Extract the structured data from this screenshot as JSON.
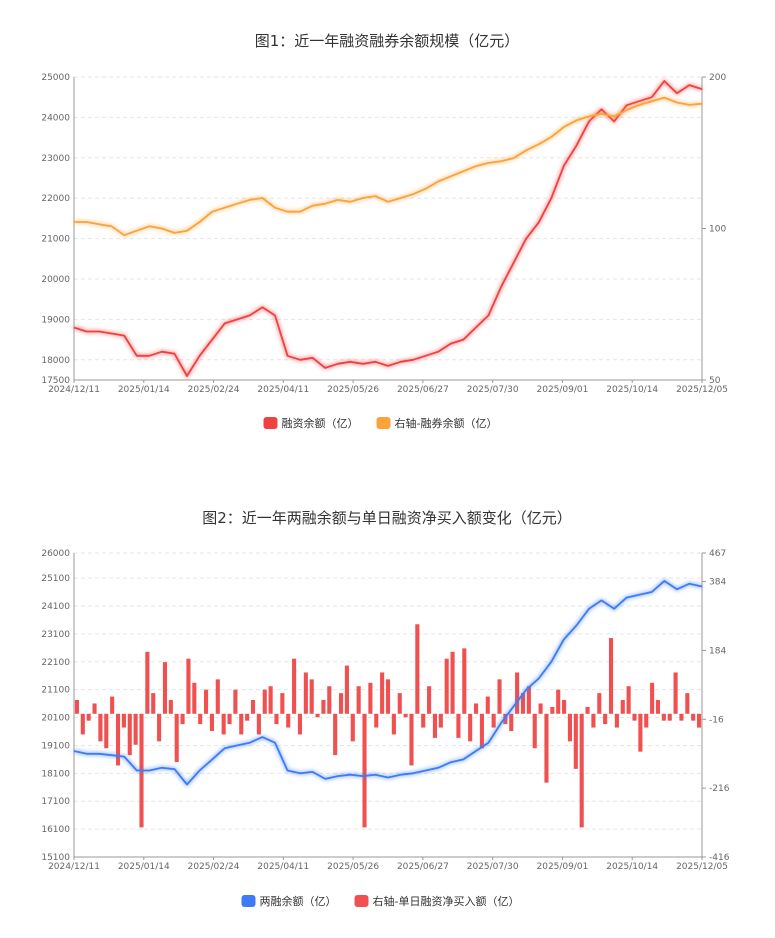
{
  "chart_data": [
    {
      "type": "line",
      "title": "图1：近一年融资融券余额规模（亿元）",
      "x_ticks": [
        "2024/12/11",
        "2025/01/14",
        "2025/02/24",
        "2025/04/11",
        "2025/05/26",
        "2025/06/27",
        "2025/07/30",
        "2025/09/01",
        "2025/10/14",
        "2025/12/05"
      ],
      "y_left": {
        "min": 17500,
        "max": 25000,
        "ticks": [
          17500,
          18000,
          19000,
          20000,
          21000,
          22000,
          23000,
          24000,
          25000
        ]
      },
      "y_right": {
        "min": 50,
        "max": 200,
        "ticks": [
          50,
          100,
          200
        ]
      },
      "series": [
        {
          "name": "融资余额（亿）",
          "axis": "left",
          "color": "#f04040",
          "values": [
            18800,
            18700,
            18700,
            18650,
            18600,
            18100,
            18100,
            18200,
            18150,
            17600,
            18100,
            18500,
            18900,
            19000,
            19100,
            19300,
            19100,
            18100,
            18000,
            18050,
            17800,
            17900,
            17950,
            17900,
            17950,
            17850,
            17950,
            18000,
            18100,
            18200,
            18400,
            18500,
            18800,
            19100,
            19800,
            20400,
            21000,
            21400,
            22000,
            22800,
            23300,
            23900,
            24200,
            23900,
            24300,
            24400,
            24500,
            24900,
            24600,
            24800,
            24700
          ]
        },
        {
          "name": "右轴-融券余额（亿）",
          "axis": "right",
          "color": "#f9a33a",
          "values": [
            103,
            103,
            102,
            101,
            97,
            99,
            101,
            100,
            98,
            99,
            103,
            108,
            110,
            112,
            114,
            115,
            110,
            108,
            108,
            111,
            112,
            114,
            113,
            115,
            116,
            113,
            115,
            117,
            120,
            124,
            127,
            130,
            133,
            135,
            136,
            138,
            143,
            147,
            152,
            159,
            164,
            167,
            169,
            167,
            172,
            176,
            179,
            182,
            178,
            176,
            177
          ]
        }
      ]
    },
    {
      "type": "bar+line",
      "title": "图2：近一年两融余额与单日融资净买入额变化（亿元）",
      "x_ticks": [
        "2024/12/11",
        "2025/01/14",
        "2025/02/24",
        "2025/04/11",
        "2025/05/26",
        "2025/06/27",
        "2025/07/30",
        "2025/09/01",
        "2025/10/14",
        "2025/12/05"
      ],
      "y_left": {
        "min": 15100,
        "max": 26000,
        "ticks": [
          15100,
          16100,
          17100,
          18100,
          19100,
          20100,
          21100,
          22100,
          23100,
          24100,
          25100,
          26000
        ]
      },
      "y_right": {
        "min": -416,
        "max": 467,
        "ticks": [
          -416,
          -216,
          -16,
          184,
          384,
          467
        ]
      },
      "series": [
        {
          "name": "两融余额（亿）",
          "axis": "left",
          "color": "#3d7bf5",
          "values": [
            18900,
            18800,
            18800,
            18750,
            18700,
            18200,
            18200,
            18300,
            18250,
            17700,
            18200,
            18600,
            19000,
            19100,
            19200,
            19400,
            19200,
            18200,
            18100,
            18150,
            17900,
            18000,
            18050,
            18000,
            18050,
            17950,
            18050,
            18100,
            18200,
            18300,
            18500,
            18600,
            18900,
            19200,
            19900,
            20500,
            21100,
            21500,
            22100,
            22900,
            23400,
            24000,
            24300,
            24000,
            24400,
            24500,
            24600,
            25000,
            24700,
            24900,
            24800
          ]
        },
        {
          "name": "右轴-单日融资净买入额（亿）",
          "axis": "right",
          "color": "#f05050",
          "values": [
            40,
            -60,
            -20,
            30,
            -80,
            -100,
            50,
            -150,
            -40,
            -120,
            -90,
            -330,
            180,
            60,
            -80,
            150,
            40,
            -140,
            -30,
            160,
            90,
            -30,
            70,
            -50,
            100,
            -60,
            -30,
            70,
            -60,
            -20,
            40,
            -60,
            70,
            80,
            -30,
            60,
            -40,
            160,
            -60,
            120,
            100,
            -10,
            40,
            80,
            -120,
            60,
            140,
            -80,
            80,
            -330,
            90,
            -40,
            120,
            100,
            -60,
            60,
            -10,
            -150,
            260,
            -40,
            80,
            -70,
            -40,
            160,
            180,
            -70,
            190,
            -80,
            30,
            -100,
            50,
            -40,
            100,
            -30,
            -50,
            120,
            60,
            80,
            -100,
            30,
            -200,
            20,
            70,
            40,
            -80,
            -160,
            -330,
            20,
            -40,
            60,
            -30,
            220,
            -40,
            40,
            80,
            -20,
            -110,
            -40,
            90,
            40,
            -20,
            -20,
            120,
            -20,
            60,
            -20,
            -40
          ]
        }
      ]
    }
  ]
}
